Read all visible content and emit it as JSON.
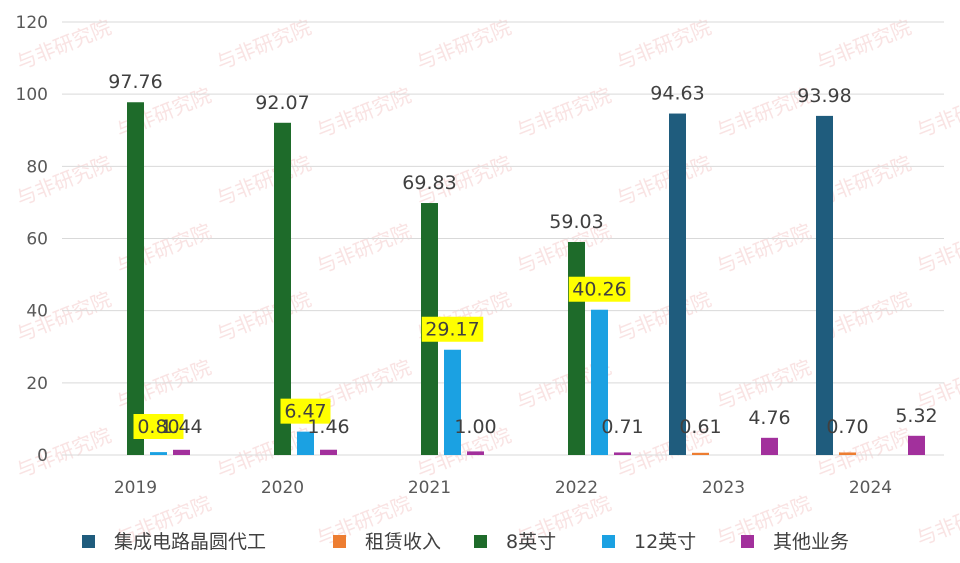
{
  "chart_data": {
    "type": "bar",
    "categories": [
      "2019",
      "2020",
      "2021",
      "2022",
      "2023",
      "2024"
    ],
    "ylim": [
      0,
      120
    ],
    "yticks": [
      0,
      20,
      40,
      60,
      80,
      100,
      120
    ],
    "grid": true,
    "legend_position": "bottom",
    "series": [
      {
        "name": "集成电路晶圆代工",
        "color": "#1f5c7d",
        "values": [
          null,
          null,
          null,
          null,
          94.63,
          93.98
        ],
        "labels": [
          "",
          "",
          "",
          "",
          "94.63",
          "93.98"
        ],
        "highlight": [
          false,
          false,
          false,
          false,
          false,
          false
        ]
      },
      {
        "name": "租赁收入",
        "color": "#ed7d31",
        "values": [
          null,
          null,
          null,
          null,
          0.61,
          0.7
        ],
        "labels": [
          "",
          "",
          "",
          "",
          "0.61",
          "0.70"
        ],
        "highlight": [
          false,
          false,
          false,
          false,
          false,
          false
        ]
      },
      {
        "name": "8英寸",
        "color": "#1e6b2a",
        "values": [
          97.76,
          92.07,
          69.83,
          59.03,
          null,
          null
        ],
        "labels": [
          "97.76",
          "92.07",
          "69.83",
          "59.03",
          "",
          ""
        ],
        "highlight": [
          false,
          false,
          false,
          false,
          false,
          false
        ]
      },
      {
        "name": "12英寸",
        "color": "#1ba1e2",
        "values": [
          0.8,
          6.47,
          29.17,
          40.26,
          null,
          null
        ],
        "labels": [
          "0.80",
          "6.47",
          "29.17",
          "40.26",
          "",
          ""
        ],
        "highlight": [
          true,
          true,
          true,
          true,
          false,
          false
        ]
      },
      {
        "name": "其他业务",
        "color": "#a2309c",
        "values": [
          1.44,
          1.46,
          1.0,
          0.71,
          4.76,
          5.32
        ],
        "labels": [
          "1.44",
          "1.46",
          "1.00",
          "0.71",
          "4.76",
          "5.32"
        ],
        "highlight": [
          false,
          false,
          false,
          false,
          false,
          false
        ]
      }
    ]
  },
  "watermark_text": "与非研究院",
  "highlight_color": "#ffff00"
}
